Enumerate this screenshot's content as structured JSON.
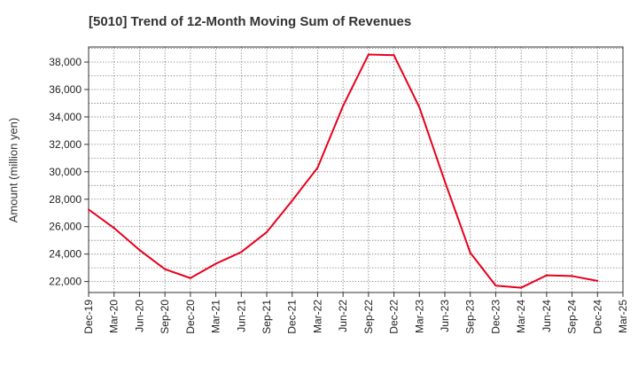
{
  "chart_data": {
    "type": "line",
    "title": "[5010]  Trend of 12-Month Moving Sum of Revenues",
    "xlabel": "",
    "ylabel": "Amount (million yen)",
    "ylim": [
      21200,
      39100
    ],
    "yticks": [
      22000,
      24000,
      26000,
      28000,
      30000,
      32000,
      34000,
      36000,
      38000
    ],
    "ytick_labels": [
      "22,000",
      "24,000",
      "26,000",
      "28,000",
      "30,000",
      "32,000",
      "34,000",
      "36,000",
      "38,000"
    ],
    "categories": [
      "Dec-19",
      "Mar-20",
      "Jun-20",
      "Sep-20",
      "Dec-20",
      "Mar-21",
      "Jun-21",
      "Sep-21",
      "Dec-21",
      "Mar-22",
      "Jun-22",
      "Sep-22",
      "Dec-22",
      "Mar-23",
      "Jun-23",
      "Sep-23",
      "Dec-23",
      "Mar-24",
      "Jun-24",
      "Sep-24",
      "Dec-24",
      "Mar-25"
    ],
    "series": [
      {
        "color": "#e8001c",
        "values": [
          27250,
          25900,
          24300,
          22900,
          22250,
          23300,
          24150,
          25600,
          27900,
          30300,
          34800,
          38550,
          38500,
          34700,
          29300,
          24100,
          21700,
          21550,
          22450,
          22400,
          22050,
          null
        ]
      }
    ],
    "grid": true,
    "grid_style": "dotted",
    "legend": "none"
  }
}
